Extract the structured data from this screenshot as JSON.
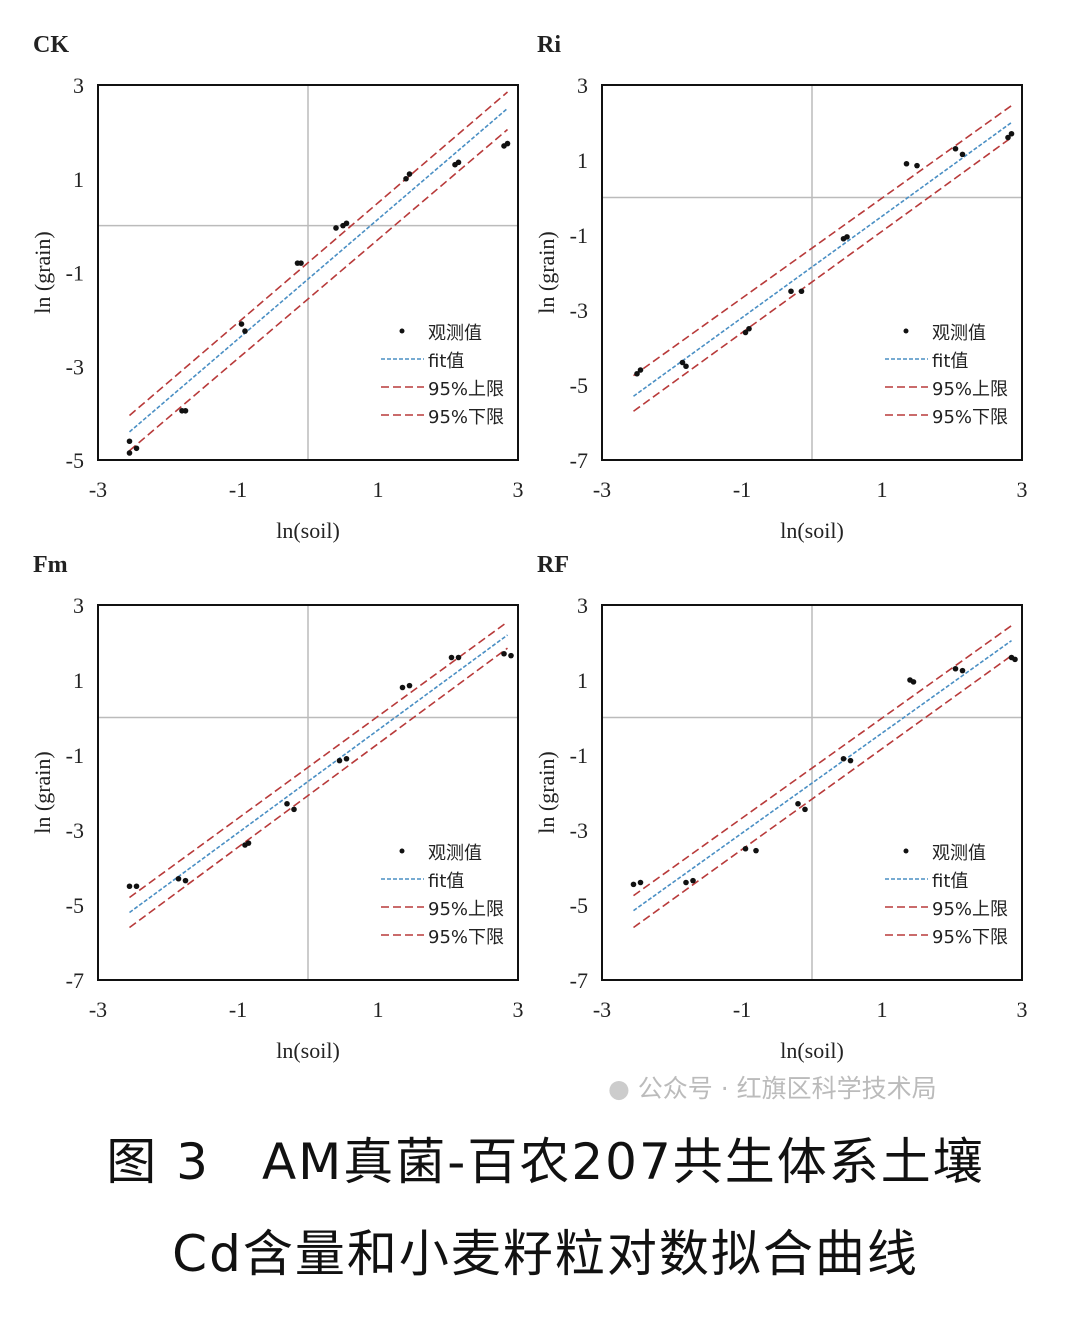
{
  "chart_data": [
    {
      "type": "scatter",
      "title": "CK",
      "xlabel": "ln(soil)",
      "ylabel": "ln (grain)",
      "xlim": [
        -3,
        3
      ],
      "ylim": [
        -5,
        3
      ],
      "xticks": [
        "-3",
        "-1",
        "1",
        "3"
      ],
      "yticks": [
        "3",
        "1",
        "-1",
        "-3",
        "-5"
      ],
      "points": [
        [
          -2.55,
          -4.6
        ],
        [
          -2.55,
          -4.85
        ],
        [
          -2.45,
          -4.75
        ],
        [
          -1.8,
          -3.95
        ],
        [
          -1.75,
          -3.95
        ],
        [
          -0.95,
          -2.1
        ],
        [
          -0.9,
          -2.25
        ],
        [
          -0.15,
          -0.8
        ],
        [
          -0.1,
          -0.8
        ],
        [
          0.4,
          -0.05
        ],
        [
          0.5,
          0.0
        ],
        [
          0.55,
          0.05
        ],
        [
          1.4,
          1.0
        ],
        [
          1.45,
          1.1
        ],
        [
          2.1,
          1.3
        ],
        [
          2.15,
          1.35
        ],
        [
          2.8,
          1.7
        ],
        [
          2.85,
          1.75
        ]
      ],
      "fit": [
        [
          -2.55,
          -4.4
        ],
        [
          2.85,
          2.5
        ]
      ],
      "upper": [
        [
          -2.55,
          -4.05
        ],
        [
          2.85,
          2.85
        ]
      ],
      "lower": [
        [
          -2.55,
          -4.8
        ],
        [
          2.85,
          2.05
        ]
      ],
      "legend": [
        "观测值",
        "fit值",
        "95%上限",
        "95%下限"
      ],
      "legend_position": "bottom-right",
      "grid": "zero lines"
    },
    {
      "type": "scatter",
      "title": "Ri",
      "xlabel": "ln(soil)",
      "ylabel": "ln (grain)",
      "xlim": [
        -3,
        3
      ],
      "ylim": [
        -7,
        3
      ],
      "xticks": [
        "-3",
        "-1",
        "1",
        "3"
      ],
      "yticks": [
        "3",
        "1",
        "-1",
        "-3",
        "-5",
        "-7"
      ],
      "points": [
        [
          -2.5,
          -4.7
        ],
        [
          -2.45,
          -4.6
        ],
        [
          -1.85,
          -4.4
        ],
        [
          -1.8,
          -4.5
        ],
        [
          -0.95,
          -3.6
        ],
        [
          -0.9,
          -3.5
        ],
        [
          -0.3,
          -2.5
        ],
        [
          -0.15,
          -2.5
        ],
        [
          0.45,
          -1.1
        ],
        [
          0.5,
          -1.05
        ],
        [
          1.35,
          0.9
        ],
        [
          1.5,
          0.85
        ],
        [
          2.05,
          1.3
        ],
        [
          2.15,
          1.15
        ],
        [
          2.8,
          1.6
        ],
        [
          2.85,
          1.7
        ]
      ],
      "fit": [
        [
          -2.55,
          -5.3
        ],
        [
          2.85,
          2.0
        ]
      ],
      "upper": [
        [
          -2.55,
          -4.75
        ],
        [
          2.85,
          2.45
        ]
      ],
      "lower": [
        [
          -2.55,
          -5.7
        ],
        [
          2.85,
          1.6
        ]
      ],
      "legend": [
        "观测值",
        "fit值",
        "95%上限",
        "95%下限"
      ],
      "legend_position": "bottom-right",
      "grid": "zero lines"
    },
    {
      "type": "scatter",
      "title": "Fm",
      "xlabel": "ln(soil)",
      "ylabel": "ln (grain)",
      "xlim": [
        -3,
        3
      ],
      "ylim": [
        -7,
        3
      ],
      "xticks": [
        "-3",
        "-1",
        "1",
        "3"
      ],
      "yticks": [
        "3",
        "1",
        "-1",
        "-3",
        "-5",
        "-7"
      ],
      "points": [
        [
          -2.55,
          -4.5
        ],
        [
          -2.45,
          -4.5
        ],
        [
          -1.85,
          -4.3
        ],
        [
          -1.75,
          -4.35
        ],
        [
          -0.9,
          -3.4
        ],
        [
          -0.85,
          -3.35
        ],
        [
          -0.3,
          -2.3
        ],
        [
          -0.2,
          -2.45
        ],
        [
          0.45,
          -1.15
        ],
        [
          0.55,
          -1.1
        ],
        [
          1.35,
          0.8
        ],
        [
          1.45,
          0.85
        ],
        [
          2.05,
          1.6
        ],
        [
          2.15,
          1.6
        ],
        [
          2.8,
          1.7
        ],
        [
          2.9,
          1.65
        ]
      ],
      "fit": [
        [
          -2.55,
          -5.2
        ],
        [
          2.85,
          2.2
        ]
      ],
      "upper": [
        [
          -2.55,
          -4.8
        ],
        [
          2.85,
          2.55
        ]
      ],
      "lower": [
        [
          -2.55,
          -5.6
        ],
        [
          2.85,
          1.85
        ]
      ],
      "legend": [
        "观测值",
        "fit值",
        "95%上限",
        "95%下限"
      ],
      "legend_position": "bottom-right",
      "grid": "zero lines"
    },
    {
      "type": "scatter",
      "title": "RF",
      "xlabel": "ln(soil)",
      "ylabel": "ln (grain)",
      "xlim": [
        -3,
        3
      ],
      "ylim": [
        -7,
        3
      ],
      "xticks": [
        "-3",
        "-1",
        "1",
        "3"
      ],
      "yticks": [
        "3",
        "1",
        "-1",
        "-3",
        "-5",
        "-7"
      ],
      "points": [
        [
          -2.55,
          -4.45
        ],
        [
          -2.45,
          -4.4
        ],
        [
          -1.8,
          -4.4
        ],
        [
          -1.7,
          -4.35
        ],
        [
          -0.95,
          -3.5
        ],
        [
          -0.8,
          -3.55
        ],
        [
          -0.2,
          -2.3
        ],
        [
          -0.1,
          -2.45
        ],
        [
          0.45,
          -1.1
        ],
        [
          0.55,
          -1.15
        ],
        [
          1.4,
          1.0
        ],
        [
          1.45,
          0.95
        ],
        [
          2.05,
          1.3
        ],
        [
          2.15,
          1.25
        ],
        [
          2.85,
          1.6
        ],
        [
          2.9,
          1.55
        ]
      ],
      "fit": [
        [
          -2.55,
          -5.15
        ],
        [
          2.85,
          2.05
        ]
      ],
      "upper": [
        [
          -2.55,
          -4.75
        ],
        [
          2.85,
          2.45
        ]
      ],
      "lower": [
        [
          -2.55,
          -5.6
        ],
        [
          2.85,
          1.65
        ]
      ],
      "legend": [
        "观测值",
        "fit值",
        "95%上限",
        "95%下限"
      ],
      "legend_position": "bottom-right",
      "grid": "zero lines"
    }
  ],
  "colors": {
    "fit": "#4a8fc4",
    "bounds": "#b83a3a",
    "points": "#111111",
    "grid": "#bbbbbb"
  },
  "watermark": "公众号 · 红旗区科学技术局",
  "caption": {
    "line1": "图 3　AM真菌-百农207共生体系土壤",
    "line2": "Cd含量和小麦籽粒对数拟合曲线"
  }
}
